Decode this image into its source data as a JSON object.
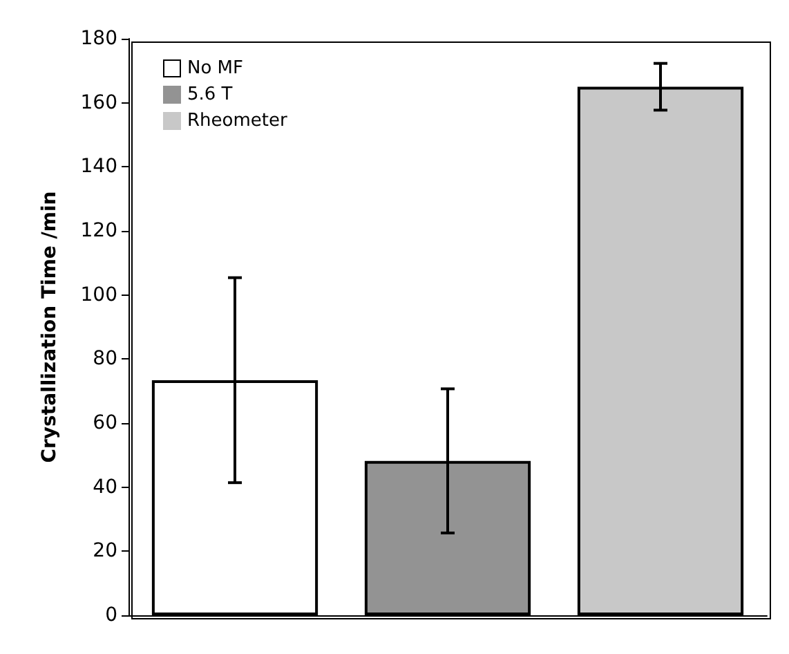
{
  "chart_data": {
    "type": "bar",
    "ylabel": "Crystallization Time /min",
    "categories": [
      null,
      null,
      null
    ],
    "series": [
      {
        "name": "No MF",
        "color": "#ffffff",
        "values": [
          73.4,
          null,
          null
        ],
        "errors": [
          32,
          null,
          null
        ]
      },
      {
        "name": "5.6 T",
        "color": "#939393",
        "values": [
          null,
          48.2,
          null
        ],
        "errors": [
          null,
          22.5,
          null
        ]
      },
      {
        "name": "Rheometer",
        "color": "#c8c8c8",
        "values": [
          null,
          null,
          165
        ],
        "errors": [
          null,
          null,
          7.3
        ]
      }
    ],
    "ylim": [
      0,
      180
    ],
    "yticks": [
      0,
      20,
      40,
      60,
      80,
      100,
      120,
      140,
      160,
      180
    ],
    "grid": false,
    "legend": "top left"
  }
}
